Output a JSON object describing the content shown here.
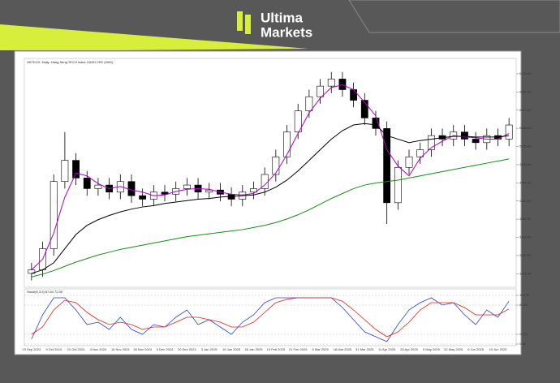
{
  "header": {
    "brand_line1": "Ultima",
    "brand_line2": "Markets"
  },
  "chart_data": [
    {
      "type": "candlestick",
      "title": "HKTECH, Daily: Hang Seng TECH Index CASH CFD (HKD)",
      "categories": [
        "23 Sep 2024",
        null,
        "9 Oct 2024",
        null,
        "22 Oct 2024",
        null,
        "4 Nov 2024",
        null,
        "15 Nov 2024",
        null,
        "28 Nov 2024",
        null,
        "9 Dec 2024",
        null,
        "20 Dec 2024",
        null,
        "3 Jan 2025",
        null,
        "16 Jan 2025",
        null,
        "28 Jan 2025",
        null,
        "10 Feb 2025",
        null,
        "21 Feb 2025",
        null,
        "5 Mar 2025",
        null,
        "18 Mar 2025",
        null,
        "31 Mar 2025",
        null,
        "11 Apr 2025",
        null,
        "25 Apr 2025",
        null,
        "9 May 2025",
        null,
        "22 May 2025",
        null,
        "6 Jun 2025",
        null,
        "19 Jun 2025",
        null
      ],
      "open": [
        3300,
        3350,
        3650,
        4600,
        4900,
        4650,
        4500,
        4550,
        4450,
        4600,
        4400,
        4350,
        4450,
        4420,
        4500,
        4550,
        4450,
        4480,
        4420,
        4350,
        4450,
        4500,
        4700,
        4950,
        5300,
        5600,
        5800,
        5950,
        6050,
        5900,
        5750,
        5500,
        5350,
        4300,
        4800,
        4950,
        5050,
        5250,
        5200,
        5300,
        5200,
        5150,
        5250,
        5200
      ],
      "high": [
        3450,
        3750,
        4700,
        5300,
        5000,
        4750,
        4650,
        4650,
        4700,
        4700,
        4500,
        4550,
        4550,
        4600,
        4650,
        4650,
        4580,
        4580,
        4520,
        4550,
        4600,
        4800,
        5050,
        5400,
        5700,
        5900,
        6050,
        6150,
        6150,
        6000,
        5850,
        5600,
        5450,
        4900,
        5050,
        5150,
        5350,
        5350,
        5400,
        5400,
        5300,
        5350,
        5350,
        5500
      ],
      "low": [
        3200,
        3250,
        3550,
        4500,
        4550,
        4400,
        4400,
        4350,
        4350,
        4300,
        4250,
        4250,
        4320,
        4320,
        4400,
        4350,
        4350,
        4320,
        4250,
        4250,
        4350,
        4400,
        4600,
        4850,
        5200,
        5500,
        5700,
        5850,
        5800,
        5650,
        5400,
        5250,
        4000,
        4200,
        4700,
        4850,
        4950,
        5100,
        5100,
        5100,
        5050,
        5050,
        5100,
        5100
      ],
      "close": [
        3350,
        3650,
        4600,
        4900,
        4650,
        4500,
        4550,
        4450,
        4600,
        4400,
        4350,
        4450,
        4420,
        4500,
        4550,
        4450,
        4480,
        4420,
        4350,
        4450,
        4500,
        4700,
        4950,
        5300,
        5600,
        5800,
        5950,
        6050,
        5900,
        5750,
        5500,
        5350,
        4300,
        4800,
        4950,
        5050,
        5250,
        5200,
        5300,
        5200,
        5150,
        5250,
        5200,
        5400
      ],
      "overlays": [
        {
          "color": "#b000c8",
          "values": [
            3350,
            3500,
            3870,
            4380,
            4720,
            4680,
            4570,
            4500,
            4530,
            4480,
            4450,
            4400,
            4410,
            4460,
            4490,
            4500,
            4490,
            4450,
            4420,
            4410,
            4430,
            4550,
            4720,
            4980,
            5280,
            5570,
            5780,
            5930,
            5970,
            5900,
            5720,
            5530,
            5050,
            4820,
            4680,
            4930,
            5080,
            5170,
            5250,
            5230,
            5220,
            5200,
            5200,
            5280
          ]
        },
        {
          "color": "#000000",
          "values": [
            3300,
            3350,
            3450,
            3650,
            3850,
            3980,
            4060,
            4120,
            4170,
            4210,
            4240,
            4260,
            4290,
            4310,
            4330,
            4350,
            4360,
            4380,
            4390,
            4400,
            4410,
            4450,
            4520,
            4620,
            4750,
            4900,
            5050,
            5200,
            5320,
            5400,
            5420,
            5400,
            5250,
            5200,
            5150,
            5180,
            5200,
            5220,
            5240,
            5240,
            5230,
            5230,
            5230,
            5250
          ]
        },
        {
          "color": "#1a8a1a",
          "values": [
            3250,
            3290,
            3340,
            3400,
            3460,
            3510,
            3560,
            3600,
            3640,
            3670,
            3700,
            3730,
            3760,
            3790,
            3820,
            3840,
            3860,
            3880,
            3900,
            3920,
            3950,
            3980,
            4020,
            4070,
            4130,
            4200,
            4280,
            4360,
            4430,
            4500,
            4550,
            4580,
            4600,
            4620,
            4650,
            4680,
            4710,
            4740,
            4770,
            4800,
            4830,
            4860,
            4890,
            4920
          ]
        }
      ],
      "up_color": "#ffffff",
      "down_color": "#000000",
      "ylim": [
        3150,
        6250
      ],
      "yticks": [
        {
          "value": 6124.6,
          "label": "6124.60"
        },
        {
          "value": 5867.4,
          "label": "5867.40"
        },
        {
          "value": 5610.2,
          "label": "5610.20"
        },
        {
          "value": 5353,
          "label": "5353.00"
        },
        {
          "value": 5095.8,
          "label": "5095.80"
        },
        {
          "value": 4838.6,
          "label": "4838.60"
        },
        {
          "value": 4581.4,
          "label": "4581.40"
        },
        {
          "value": 4324.2,
          "label": "4324.20"
        },
        {
          "value": 4067,
          "label": "4067.00"
        },
        {
          "value": 3809.8,
          "label": "3809.80"
        },
        {
          "value": 3552.6,
          "label": "3552.60"
        },
        {
          "value": 3295.4,
          "label": "3295.40"
        }
      ]
    },
    {
      "type": "line",
      "title": "Stoch(5,3,3) 87.64 72.00",
      "series": [
        {
          "color": "#2a3fd6",
          "values": [
            10,
            60,
            95,
            95,
            70,
            40,
            45,
            30,
            55,
            30,
            20,
            40,
            35,
            55,
            70,
            40,
            50,
            35,
            20,
            45,
            60,
            85,
            95,
            95,
            95,
            95,
            95,
            95,
            75,
            50,
            25,
            15,
            5,
            40,
            70,
            85,
            95,
            80,
            85,
            60,
            40,
            70,
            55,
            88
          ]
        },
        {
          "color": "#e0201a",
          "values": [
            20,
            35,
            70,
            90,
            85,
            65,
            50,
            40,
            45,
            40,
            30,
            35,
            35,
            45,
            55,
            55,
            50,
            45,
            35,
            35,
            45,
            65,
            85,
            92,
            95,
            95,
            95,
            95,
            88,
            70,
            50,
            30,
            15,
            25,
            45,
            70,
            85,
            85,
            85,
            75,
            60,
            60,
            60,
            72
          ]
        }
      ],
      "ylim": [
        0,
        100
      ],
      "yticks": [
        {
          "value": 100,
          "label": "100.00"
        },
        {
          "value": 80,
          "label": "80.00"
        },
        {
          "value": 20,
          "label": "20.00"
        },
        {
          "value": 0,
          "label": "0.00"
        }
      ]
    }
  ]
}
